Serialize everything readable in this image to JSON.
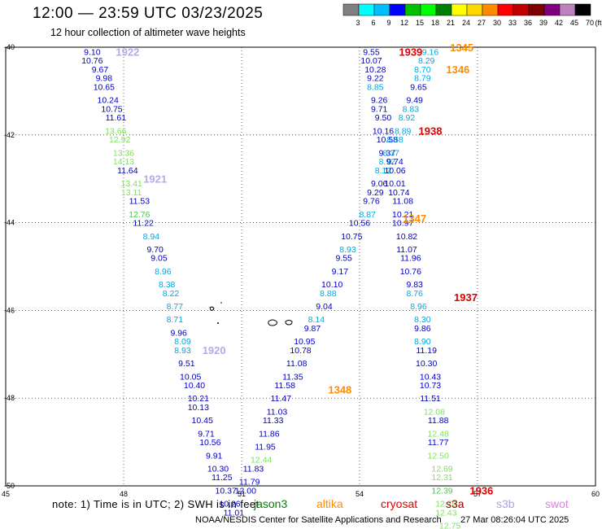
{
  "header": {
    "title": "12:00 — 23:59 UTC 03/23/2025",
    "subtitle": "12 hour collection of altimeter wave heights"
  },
  "colorbar": {
    "ticks": [
      "3",
      "6",
      "9",
      "12",
      "15",
      "18",
      "21",
      "24",
      "27",
      "30",
      "33",
      "36",
      "39",
      "42",
      "45",
      "70"
    ],
    "unit": "(ft)",
    "colors": [
      "#808080",
      "#00ffff",
      "#00bfff",
      "#0000ff",
      "#00c000",
      "#00ff00",
      "#008000",
      "#ffff00",
      "#ffd700",
      "#ff8c00",
      "#ff0000",
      "#c00000",
      "#800000",
      "#800080",
      "#c080c0",
      "#000000"
    ]
  },
  "footer": {
    "note": "note: 1) Time is in UTC; 2) SWH is in feet",
    "credit": "NOAA/NESDIS Center for Satellite Applications and Research",
    "timestamp": "27 Mar 08:26:04 UTC 2025",
    "satellites": [
      {
        "name": "jason3",
        "color": "#008000"
      },
      {
        "name": "altika",
        "color": "#ff8c00"
      },
      {
        "name": "cryosat",
        "color": "#e00000"
      },
      {
        "name": "s3a",
        "color": "#a00000"
      },
      {
        "name": "s3b",
        "color": "#b0a0e0"
      },
      {
        "name": "swot",
        "color": "#e080e0"
      }
    ]
  },
  "chart_data": {
    "type": "scatter",
    "xlim": [
      45,
      60
    ],
    "ylim": [
      -50,
      -40
    ],
    "x_ticks": [
      "45",
      "48",
      "51",
      "54",
      "57",
      "60"
    ],
    "y_ticks": [
      "-40",
      "-42",
      "-44",
      "-46",
      "-48",
      "-50"
    ],
    "grid": true,
    "series_colors": {
      "blue": "#0000c0",
      "cyan": "#00a8e0",
      "green": "#40d040",
      "lgreen": "#80e060"
    },
    "points": [
      {
        "x": 47.2,
        "y": -40.1,
        "v": "9.10",
        "c": "blue"
      },
      {
        "x": 47.2,
        "y": -40.3,
        "v": "10.76",
        "c": "blue"
      },
      {
        "x": 47.4,
        "y": -40.5,
        "v": "9.67",
        "c": "blue"
      },
      {
        "x": 47.5,
        "y": -40.7,
        "v": "9.98",
        "c": "blue"
      },
      {
        "x": 47.5,
        "y": -40.9,
        "v": "10.65",
        "c": "blue"
      },
      {
        "x": 47.6,
        "y": -41.2,
        "v": "10.24",
        "c": "blue"
      },
      {
        "x": 47.7,
        "y": -41.4,
        "v": "10.75",
        "c": "blue"
      },
      {
        "x": 47.8,
        "y": -41.6,
        "v": "11.61",
        "c": "blue"
      },
      {
        "x": 47.8,
        "y": -41.9,
        "v": "13.66",
        "c": "lgreen"
      },
      {
        "x": 47.9,
        "y": -42.1,
        "v": "12.92",
        "c": "lgreen"
      },
      {
        "x": 48.0,
        "y": -42.4,
        "v": "13.36",
        "c": "lgreen"
      },
      {
        "x": 48.0,
        "y": -42.6,
        "v": "14.13",
        "c": "lgreen"
      },
      {
        "x": 48.1,
        "y": -42.8,
        "v": "11.64",
        "c": "blue"
      },
      {
        "x": 48.2,
        "y": -43.1,
        "v": "13.41",
        "c": "lgreen"
      },
      {
        "x": 48.2,
        "y": -43.3,
        "v": "13.11",
        "c": "lgreen"
      },
      {
        "x": 48.4,
        "y": -43.5,
        "v": "11.53",
        "c": "blue"
      },
      {
        "x": 48.4,
        "y": -43.8,
        "v": "12.76",
        "c": "green"
      },
      {
        "x": 48.5,
        "y": -44.0,
        "v": "11.22",
        "c": "blue"
      },
      {
        "x": 48.7,
        "y": -44.3,
        "v": "8.94",
        "c": "cyan"
      },
      {
        "x": 48.8,
        "y": -44.6,
        "v": "9.70",
        "c": "blue"
      },
      {
        "x": 48.9,
        "y": -44.8,
        "v": "9.05",
        "c": "blue"
      },
      {
        "x": 49.0,
        "y": -45.1,
        "v": "8.96",
        "c": "cyan"
      },
      {
        "x": 49.1,
        "y": -45.4,
        "v": "8.38",
        "c": "cyan"
      },
      {
        "x": 49.2,
        "y": -45.6,
        "v": "8.22",
        "c": "cyan"
      },
      {
        "x": 49.3,
        "y": -45.9,
        "v": "8.77",
        "c": "cyan"
      },
      {
        "x": 49.3,
        "y": -46.2,
        "v": "8.71",
        "c": "cyan"
      },
      {
        "x": 49.4,
        "y": -46.5,
        "v": "9.96",
        "c": "blue"
      },
      {
        "x": 49.5,
        "y": -46.7,
        "v": "8.09",
        "c": "cyan"
      },
      {
        "x": 49.5,
        "y": -46.9,
        "v": "8.93",
        "c": "cyan"
      },
      {
        "x": 49.6,
        "y": -47.2,
        "v": "9.51",
        "c": "blue"
      },
      {
        "x": 49.7,
        "y": -47.5,
        "v": "10.05",
        "c": "blue"
      },
      {
        "x": 49.8,
        "y": -47.7,
        "v": "10.40",
        "c": "blue"
      },
      {
        "x": 49.9,
        "y": -48.0,
        "v": "10.21",
        "c": "blue"
      },
      {
        "x": 49.9,
        "y": -48.2,
        "v": "10.13",
        "c": "blue"
      },
      {
        "x": 50.0,
        "y": -48.5,
        "v": "10.45",
        "c": "blue"
      },
      {
        "x": 50.1,
        "y": -48.8,
        "v": "9.71",
        "c": "blue"
      },
      {
        "x": 50.2,
        "y": -49.0,
        "v": "10.56",
        "c": "blue"
      },
      {
        "x": 50.3,
        "y": -49.3,
        "v": "9.91",
        "c": "blue"
      },
      {
        "x": 50.4,
        "y": -49.6,
        "v": "10.30",
        "c": "blue"
      },
      {
        "x": 50.5,
        "y": -49.8,
        "v": "11.25",
        "c": "blue"
      },
      {
        "x": 50.6,
        "y": -50.1,
        "v": "10.37",
        "c": "blue"
      },
      {
        "x": 50.7,
        "y": -50.4,
        "v": "10.26",
        "c": "blue"
      },
      {
        "x": 50.8,
        "y": -50.6,
        "v": "11.01",
        "c": "blue"
      },
      {
        "x": 54.3,
        "y": -40.1,
        "v": "9.55",
        "c": "blue"
      },
      {
        "x": 54.3,
        "y": -40.3,
        "v": "10.07",
        "c": "blue"
      },
      {
        "x": 54.4,
        "y": -40.5,
        "v": "10.28",
        "c": "blue"
      },
      {
        "x": 54.4,
        "y": -40.7,
        "v": "9.22",
        "c": "blue"
      },
      {
        "x": 54.4,
        "y": -40.9,
        "v": "8.85",
        "c": "cyan"
      },
      {
        "x": 54.5,
        "y": -41.2,
        "v": "9.26",
        "c": "blue"
      },
      {
        "x": 54.5,
        "y": -41.4,
        "v": "9.71",
        "c": "blue"
      },
      {
        "x": 54.6,
        "y": -41.6,
        "v": "9.50",
        "c": "blue"
      },
      {
        "x": 54.6,
        "y": -41.9,
        "v": "10.16",
        "c": "blue"
      },
      {
        "x": 54.7,
        "y": -42.1,
        "v": "10.58",
        "c": "blue"
      },
      {
        "x": 54.7,
        "y": -42.4,
        "v": "9.37",
        "c": "blue"
      },
      {
        "x": 54.7,
        "y": -42.6,
        "v": "8.92",
        "c": "cyan"
      },
      {
        "x": 54.6,
        "y": -42.8,
        "v": "8.12",
        "c": "cyan"
      },
      {
        "x": 54.5,
        "y": -43.1,
        "v": "9.06",
        "c": "blue"
      },
      {
        "x": 54.4,
        "y": -43.3,
        "v": "9.29",
        "c": "blue"
      },
      {
        "x": 54.3,
        "y": -43.5,
        "v": "9.76",
        "c": "blue"
      },
      {
        "x": 54.2,
        "y": -43.8,
        "v": "8.87",
        "c": "cyan"
      },
      {
        "x": 54.0,
        "y": -44.0,
        "v": "10.56",
        "c": "blue"
      },
      {
        "x": 53.8,
        "y": -44.3,
        "v": "10.75",
        "c": "blue"
      },
      {
        "x": 53.7,
        "y": -44.6,
        "v": "8.93",
        "c": "cyan"
      },
      {
        "x": 53.6,
        "y": -44.8,
        "v": "9.55",
        "c": "blue"
      },
      {
        "x": 53.5,
        "y": -45.1,
        "v": "9.17",
        "c": "blue"
      },
      {
        "x": 53.3,
        "y": -45.4,
        "v": "10.10",
        "c": "blue"
      },
      {
        "x": 53.2,
        "y": -45.6,
        "v": "8.88",
        "c": "cyan"
      },
      {
        "x": 53.1,
        "y": -45.9,
        "v": "9.04",
        "c": "blue"
      },
      {
        "x": 52.9,
        "y": -46.2,
        "v": "8.14",
        "c": "cyan"
      },
      {
        "x": 52.8,
        "y": -46.4,
        "v": "9.87",
        "c": "blue"
      },
      {
        "x": 52.6,
        "y": -46.7,
        "v": "10.95",
        "c": "blue"
      },
      {
        "x": 52.5,
        "y": -46.9,
        "v": "10.78",
        "c": "blue"
      },
      {
        "x": 52.4,
        "y": -47.2,
        "v": "11.08",
        "c": "blue"
      },
      {
        "x": 52.3,
        "y": -47.5,
        "v": "11.35",
        "c": "blue"
      },
      {
        "x": 52.1,
        "y": -47.7,
        "v": "11.58",
        "c": "blue"
      },
      {
        "x": 52.0,
        "y": -48.0,
        "v": "11.47",
        "c": "blue"
      },
      {
        "x": 51.9,
        "y": -48.3,
        "v": "11.03",
        "c": "blue"
      },
      {
        "x": 51.8,
        "y": -48.5,
        "v": "11.33",
        "c": "blue"
      },
      {
        "x": 51.7,
        "y": -48.8,
        "v": "11.86",
        "c": "blue"
      },
      {
        "x": 51.6,
        "y": -49.1,
        "v": "11.95",
        "c": "blue"
      },
      {
        "x": 51.5,
        "y": -49.4,
        "v": "12.44",
        "c": "lgreen"
      },
      {
        "x": 51.3,
        "y": -49.6,
        "v": "11.83",
        "c": "blue"
      },
      {
        "x": 51.2,
        "y": -49.9,
        "v": "11.79",
        "c": "blue"
      },
      {
        "x": 51.1,
        "y": -50.1,
        "v": "12.00",
        "c": "blue"
      },
      {
        "x": 55.8,
        "y": -40.1,
        "v": "9.16",
        "c": "cyan"
      },
      {
        "x": 55.7,
        "y": -40.3,
        "v": "8.29",
        "c": "cyan"
      },
      {
        "x": 55.6,
        "y": -40.5,
        "v": "8.70",
        "c": "cyan"
      },
      {
        "x": 55.6,
        "y": -40.7,
        "v": "8.79",
        "c": "cyan"
      },
      {
        "x": 55.5,
        "y": -40.9,
        "v": "9.65",
        "c": "blue"
      },
      {
        "x": 55.4,
        "y": -41.2,
        "v": "9.49",
        "c": "blue"
      },
      {
        "x": 55.3,
        "y": -41.4,
        "v": "8.83",
        "c": "cyan"
      },
      {
        "x": 55.2,
        "y": -41.6,
        "v": "8.92",
        "c": "cyan"
      },
      {
        "x": 55.1,
        "y": -41.9,
        "v": "8.89",
        "c": "cyan"
      },
      {
        "x": 54.9,
        "y": -42.1,
        "v": "8.58",
        "c": "cyan"
      },
      {
        "x": 54.8,
        "y": -42.4,
        "v": "8.37",
        "c": "cyan"
      },
      {
        "x": 54.9,
        "y": -42.6,
        "v": "9.74",
        "c": "blue"
      },
      {
        "x": 54.9,
        "y": -42.8,
        "v": "10.06",
        "c": "blue"
      },
      {
        "x": 54.9,
        "y": -43.1,
        "v": "10.01",
        "c": "blue"
      },
      {
        "x": 55.0,
        "y": -43.3,
        "v": "10.74",
        "c": "blue"
      },
      {
        "x": 55.1,
        "y": -43.5,
        "v": "11.08",
        "c": "blue"
      },
      {
        "x": 55.1,
        "y": -43.8,
        "v": "10.21",
        "c": "blue"
      },
      {
        "x": 55.1,
        "y": -44.0,
        "v": "10.97",
        "c": "blue"
      },
      {
        "x": 55.2,
        "y": -44.3,
        "v": "10.82",
        "c": "blue"
      },
      {
        "x": 55.2,
        "y": -44.6,
        "v": "11.07",
        "c": "blue"
      },
      {
        "x": 55.3,
        "y": -44.8,
        "v": "11.96",
        "c": "blue"
      },
      {
        "x": 55.3,
        "y": -45.1,
        "v": "10.76",
        "c": "blue"
      },
      {
        "x": 55.4,
        "y": -45.4,
        "v": "9.83",
        "c": "blue"
      },
      {
        "x": 55.4,
        "y": -45.6,
        "v": "8.76",
        "c": "cyan"
      },
      {
        "x": 55.5,
        "y": -45.9,
        "v": "8.96",
        "c": "cyan"
      },
      {
        "x": 55.6,
        "y": -46.2,
        "v": "8.30",
        "c": "cyan"
      },
      {
        "x": 55.6,
        "y": -46.4,
        "v": "9.86",
        "c": "blue"
      },
      {
        "x": 55.6,
        "y": -46.7,
        "v": "8.90",
        "c": "cyan"
      },
      {
        "x": 55.7,
        "y": -46.9,
        "v": "11.19",
        "c": "blue"
      },
      {
        "x": 55.7,
        "y": -47.2,
        "v": "10.30",
        "c": "blue"
      },
      {
        "x": 55.8,
        "y": -47.5,
        "v": "10.43",
        "c": "blue"
      },
      {
        "x": 55.8,
        "y": -47.7,
        "v": "10.73",
        "c": "blue"
      },
      {
        "x": 55.8,
        "y": -48.0,
        "v": "11.51",
        "c": "blue"
      },
      {
        "x": 55.9,
        "y": -48.3,
        "v": "12.08",
        "c": "lgreen"
      },
      {
        "x": 56.0,
        "y": -48.5,
        "v": "11.88",
        "c": "blue"
      },
      {
        "x": 56.0,
        "y": -48.8,
        "v": "12.48",
        "c": "lgreen"
      },
      {
        "x": 56.0,
        "y": -49.0,
        "v": "11.77",
        "c": "blue"
      },
      {
        "x": 56.0,
        "y": -49.3,
        "v": "12.50",
        "c": "lgreen"
      },
      {
        "x": 56.1,
        "y": -49.6,
        "v": "12.69",
        "c": "lgreen"
      },
      {
        "x": 56.1,
        "y": -49.8,
        "v": "12.31",
        "c": "lgreen"
      },
      {
        "x": 56.1,
        "y": -50.1,
        "v": "12.39",
        "c": "green"
      },
      {
        "x": 56.2,
        "y": -50.4,
        "v": "12.70",
        "c": "lgreen"
      },
      {
        "x": 56.2,
        "y": -50.6,
        "v": "12.43",
        "c": "lgreen"
      },
      {
        "x": 56.3,
        "y": -50.9,
        "v": "12.75",
        "c": "lgreen"
      }
    ],
    "annotations": [
      {
        "x": 48.1,
        "y": -40.1,
        "t": "1922",
        "color": "#b8a8e8"
      },
      {
        "x": 48.8,
        "y": -43.0,
        "t": "1921",
        "color": "#b8a8e8"
      },
      {
        "x": 50.3,
        "y": -46.9,
        "t": "1920",
        "color": "#b8a8e8"
      },
      {
        "x": 55.3,
        "y": -40.1,
        "t": "1939",
        "color": "#e00000"
      },
      {
        "x": 56.6,
        "y": -40.0,
        "t": "1345",
        "color": "#ff8c00"
      },
      {
        "x": 56.5,
        "y": -40.5,
        "t": "1346",
        "color": "#ff8c00"
      },
      {
        "x": 55.8,
        "y": -41.9,
        "t": "1938",
        "color": "#e00000"
      },
      {
        "x": 55.4,
        "y": -43.9,
        "t": "1347",
        "color": "#ff8c00"
      },
      {
        "x": 56.7,
        "y": -45.7,
        "t": "1937",
        "color": "#e00000"
      },
      {
        "x": 53.5,
        "y": -47.8,
        "t": "1348",
        "color": "#ff8c00"
      },
      {
        "x": 57.1,
        "y": -50.1,
        "t": "1936",
        "color": "#e00000"
      }
    ]
  }
}
